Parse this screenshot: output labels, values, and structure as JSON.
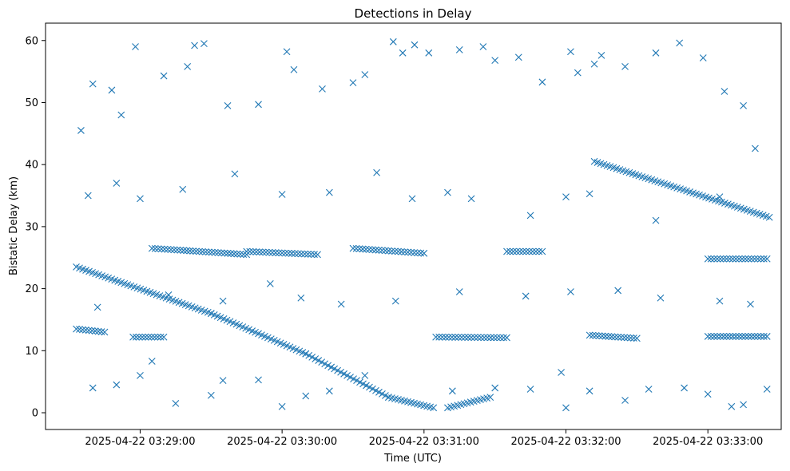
{
  "chart_data": {
    "type": "scatter",
    "title": "Detections in Delay",
    "xlabel": "Time (UTC)",
    "ylabel": "Bistatic Delay (km)",
    "marker": "x",
    "color": "#1f77b4",
    "xlim": [
      "2025-04-22 03:28:20",
      "2025-04-22 03:33:31"
    ],
    "ylim": [
      -2.7,
      62.8
    ],
    "xticks": [
      "2025-04-22 03:29:00",
      "2025-04-22 03:30:00",
      "2025-04-22 03:31:00",
      "2025-04-22 03:32:00",
      "2025-04-22 03:33:00"
    ],
    "yticks": [
      0,
      10,
      20,
      30,
      40,
      50,
      60
    ],
    "grid": false,
    "legend": "none",
    "tracks": [
      {
        "x": [
          "03:28:33",
          "03:29:30",
          "03:30:10",
          "03:30:45",
          "03:31:04"
        ],
        "y": [
          23.5,
          16.0,
          9.5,
          2.5,
          0.8
        ]
      },
      {
        "x": [
          "03:31:10",
          "03:31:28"
        ],
        "y": [
          0.8,
          2.5
        ]
      },
      {
        "x": [
          "03:32:12",
          "03:33:26"
        ],
        "y": [
          40.5,
          31.5
        ]
      },
      {
        "x": [
          "03:28:33",
          "03:28:45"
        ],
        "y": [
          13.5,
          13.0
        ]
      },
      {
        "x": [
          "03:28:57",
          "03:29:10"
        ],
        "y": [
          12.2,
          12.2
        ]
      },
      {
        "x": [
          "03:29:05",
          "03:29:45"
        ],
        "y": [
          26.5,
          25.5
        ]
      },
      {
        "x": [
          "03:29:45",
          "03:30:15"
        ],
        "y": [
          26.0,
          25.5
        ]
      },
      {
        "x": [
          "03:30:30",
          "03:31:00"
        ],
        "y": [
          26.5,
          25.7
        ]
      },
      {
        "x": [
          "03:31:05",
          "03:31:35"
        ],
        "y": [
          12.2,
          12.1
        ]
      },
      {
        "x": [
          "03:31:35",
          "03:31:50"
        ],
        "y": [
          26.0,
          26.0
        ]
      },
      {
        "x": [
          "03:32:10",
          "03:32:30"
        ],
        "y": [
          12.5,
          12.0
        ]
      },
      {
        "x": [
          "03:33:00",
          "03:33:25"
        ],
        "y": [
          12.3,
          12.3
        ]
      },
      {
        "x": [
          "03:33:00",
          "03:33:25"
        ],
        "y": [
          24.8,
          24.8
        ]
      }
    ],
    "scatter_points": [
      [
        "03:28:35",
        45.5
      ],
      [
        "03:28:40",
        53.0
      ],
      [
        "03:28:48",
        52.0
      ],
      [
        "03:28:52",
        48.0
      ],
      [
        "03:28:58",
        59.0
      ],
      [
        "03:29:10",
        54.3
      ],
      [
        "03:29:20",
        55.8
      ],
      [
        "03:29:23",
        59.2
      ],
      [
        "03:29:27",
        59.5
      ],
      [
        "03:29:37",
        49.5
      ],
      [
        "03:29:50",
        49.7
      ],
      [
        "03:30:02",
        58.2
      ],
      [
        "03:30:05",
        55.3
      ],
      [
        "03:30:17",
        52.2
      ],
      [
        "03:30:30",
        53.2
      ],
      [
        "03:30:35",
        54.5
      ],
      [
        "03:30:47",
        59.8
      ],
      [
        "03:30:51",
        58.0
      ],
      [
        "03:30:56",
        59.3
      ],
      [
        "03:31:02",
        58.0
      ],
      [
        "03:31:15",
        58.5
      ],
      [
        "03:31:25",
        59.0
      ],
      [
        "03:31:30",
        56.8
      ],
      [
        "03:31:40",
        57.3
      ],
      [
        "03:31:50",
        53.3
      ],
      [
        "03:32:02",
        58.2
      ],
      [
        "03:32:05",
        54.8
      ],
      [
        "03:32:12",
        56.2
      ],
      [
        "03:32:15",
        57.6
      ],
      [
        "03:32:25",
        55.8
      ],
      [
        "03:32:38",
        58.0
      ],
      [
        "03:32:48",
        59.6
      ],
      [
        "03:32:58",
        57.2
      ],
      [
        "03:33:07",
        51.8
      ],
      [
        "03:33:15",
        49.5
      ],
      [
        "03:33:20",
        42.6
      ],
      [
        "03:28:38",
        35.0
      ],
      [
        "03:28:50",
        37.0
      ],
      [
        "03:29:00",
        34.5
      ],
      [
        "03:29:18",
        36.0
      ],
      [
        "03:29:40",
        38.5
      ],
      [
        "03:30:00",
        35.2
      ],
      [
        "03:30:20",
        35.5
      ],
      [
        "03:30:40",
        38.7
      ],
      [
        "03:30:55",
        34.5
      ],
      [
        "03:31:10",
        35.5
      ],
      [
        "03:31:20",
        34.5
      ],
      [
        "03:31:45",
        31.8
      ],
      [
        "03:32:00",
        34.8
      ],
      [
        "03:32:10",
        35.3
      ],
      [
        "03:32:38",
        31.0
      ],
      [
        "03:33:05",
        34.8
      ],
      [
        "03:28:40",
        4.0
      ],
      [
        "03:28:50",
        4.5
      ],
      [
        "03:29:00",
        6.0
      ],
      [
        "03:29:05",
        8.3
      ],
      [
        "03:29:15",
        1.5
      ],
      [
        "03:29:30",
        2.8
      ],
      [
        "03:29:35",
        5.2
      ],
      [
        "03:29:50",
        5.3
      ],
      [
        "03:30:00",
        1.0
      ],
      [
        "03:30:10",
        2.7
      ],
      [
        "03:30:20",
        3.5
      ],
      [
        "03:30:35",
        6.0
      ],
      [
        "03:31:12",
        3.5
      ],
      [
        "03:31:30",
        4.0
      ],
      [
        "03:31:45",
        3.8
      ],
      [
        "03:31:58",
        6.5
      ],
      [
        "03:32:00",
        0.8
      ],
      [
        "03:32:10",
        3.5
      ],
      [
        "03:32:25",
        2.0
      ],
      [
        "03:32:35",
        3.8
      ],
      [
        "03:32:50",
        4.0
      ],
      [
        "03:33:00",
        3.0
      ],
      [
        "03:33:10",
        1.0
      ],
      [
        "03:33:15",
        1.3
      ],
      [
        "03:33:25",
        3.8
      ],
      [
        "03:28:42",
        17.0
      ],
      [
        "03:29:12",
        19.0
      ],
      [
        "03:29:35",
        18.0
      ],
      [
        "03:29:55",
        20.8
      ],
      [
        "03:30:08",
        18.5
      ],
      [
        "03:30:25",
        17.5
      ],
      [
        "03:30:48",
        18.0
      ],
      [
        "03:31:15",
        19.5
      ],
      [
        "03:31:43",
        18.8
      ],
      [
        "03:32:02",
        19.5
      ],
      [
        "03:32:22",
        19.7
      ],
      [
        "03:32:40",
        18.5
      ],
      [
        "03:33:05",
        18.0
      ],
      [
        "03:33:18",
        17.5
      ]
    ]
  }
}
